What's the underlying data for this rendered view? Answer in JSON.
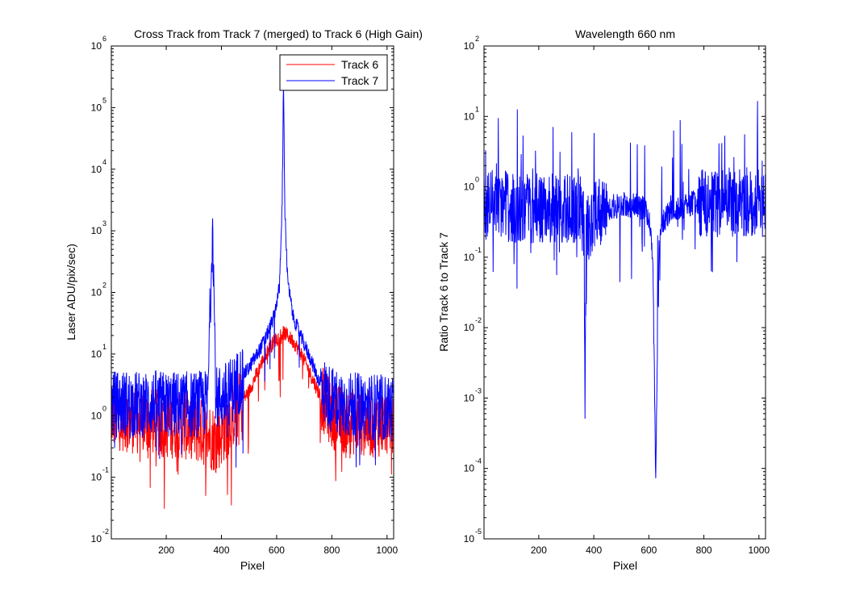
{
  "colors": {
    "track6": "#ff0000",
    "track7": "#0000ff",
    "ratio": "#0000ff",
    "axes": "#000000"
  },
  "chart_data": [
    {
      "type": "line",
      "title": "Cross Track from Track 7 (merged) to Track 6 (High Gain)",
      "xlabel": "Pixel",
      "ylabel": "Laser ADU/pix/sec)",
      "xlim": [
        1,
        1024
      ],
      "ylim": [
        0.01,
        1000000
      ],
      "yscale": "log",
      "grid": false,
      "legend_position": "top-right",
      "x_ticks": [
        "200",
        "400",
        "600",
        "800",
        "1000"
      ],
      "y_ticks": [
        {
          "base": "10",
          "exp": "-2"
        },
        {
          "base": "10",
          "exp": "-1"
        },
        {
          "base": "10",
          "exp": "0"
        },
        {
          "base": "10",
          "exp": "1"
        },
        {
          "base": "10",
          "exp": "2"
        },
        {
          "base": "10",
          "exp": "3"
        },
        {
          "base": "10",
          "exp": "4"
        },
        {
          "base": "10",
          "exp": "5"
        },
        {
          "base": "10",
          "exp": "6"
        }
      ],
      "series": [
        {
          "name": "Track 6",
          "color": "#ff0000",
          "x": [
            1,
            50,
            100,
            150,
            200,
            250,
            300,
            350,
            380,
            420,
            450,
            500,
            530,
            560,
            590,
            610,
            625,
            640,
            660,
            690,
            720,
            750,
            780,
            800,
            850,
            900,
            950,
            1000,
            1024
          ],
          "y": [
            1.0,
            0.9,
            0.8,
            0.8,
            0.7,
            0.7,
            0.6,
            0.5,
            0.4,
            0.7,
            1.2,
            2.5,
            5,
            10,
            16,
            20,
            22,
            20,
            16,
            10,
            5,
            2.5,
            1.5,
            1.0,
            0.8,
            0.8,
            0.7,
            0.8,
            0.9
          ]
        },
        {
          "name": "Track 7",
          "color": "#0000ff",
          "x": [
            1,
            50,
            100,
            150,
            200,
            250,
            300,
            350,
            368,
            380,
            420,
            450,
            500,
            530,
            560,
            590,
            610,
            620,
            625,
            630,
            640,
            660,
            690,
            720,
            750,
            780,
            800,
            850,
            900,
            950,
            1000,
            1024
          ],
          "y": [
            1.5,
            1.6,
            1.5,
            1.6,
            1.5,
            1.5,
            1.5,
            1.6,
            1600,
            1.8,
            2.2,
            3.0,
            6,
            10,
            18,
            40,
            120,
            3000,
            250000,
            2000,
            150,
            40,
            18,
            9,
            4,
            2.2,
            1.8,
            1.5,
            1.4,
            1.4,
            1.3,
            1.3
          ]
        }
      ]
    },
    {
      "type": "line",
      "title": "Wavelength 660 nm",
      "xlabel": "Pixel",
      "ylabel": "Ratio Track 6 to Track 7",
      "xlim": [
        1,
        1024
      ],
      "ylim": [
        1e-05,
        100
      ],
      "yscale": "log",
      "grid": false,
      "x_ticks": [
        "200",
        "400",
        "600",
        "800",
        "1000"
      ],
      "y_ticks": [
        {
          "base": "10",
          "exp": "-5"
        },
        {
          "base": "10",
          "exp": "-4"
        },
        {
          "base": "10",
          "exp": "-3"
        },
        {
          "base": "10",
          "exp": "-2"
        },
        {
          "base": "10",
          "exp": "-1"
        },
        {
          "base": "10",
          "exp": "0"
        },
        {
          "base": "10",
          "exp": "1"
        },
        {
          "base": "10",
          "exp": "2"
        }
      ],
      "series": [
        {
          "color": "#0000ff",
          "x": [
            1,
            50,
            100,
            150,
            200,
            250,
            300,
            350,
            365,
            368,
            372,
            400,
            450,
            500,
            550,
            580,
            600,
            615,
            625,
            635,
            650,
            680,
            720,
            760,
            800,
            850,
            900,
            950,
            1000,
            1024
          ],
          "y": [
            0.5,
            0.6,
            0.5,
            0.5,
            0.5,
            0.5,
            0.5,
            0.5,
            0.3,
            0.0005,
            0.3,
            0.4,
            0.5,
            0.55,
            0.55,
            0.5,
            0.4,
            0.1,
            6e-05,
            0.1,
            0.3,
            0.5,
            0.5,
            0.6,
            0.6,
            0.6,
            0.6,
            0.6,
            0.6,
            0.6
          ]
        }
      ]
    }
  ]
}
